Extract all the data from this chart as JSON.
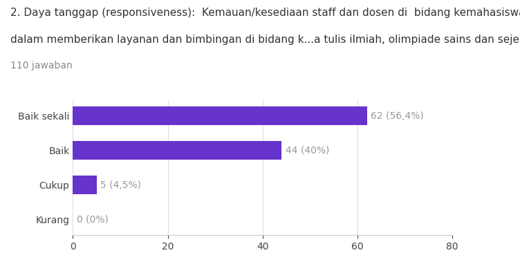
{
  "title_line1": "2. Daya tanggap (responsiveness):  Kemauan/kesediaan staff dan dosen di  bidang kemahasiswaan",
  "title_line2": "dalam memberikan layanan dan bimbingan di bidang k...a tulis ilmiah, olimpiade sains dan sejenisnya)",
  "subtitle": "110 jawaban",
  "categories": [
    "Kurang",
    "Cukup",
    "Baik",
    "Baik sekali"
  ],
  "values": [
    0,
    5,
    44,
    62
  ],
  "labels": [
    "0 (0%)",
    "5 (4,5%)",
    "44 (40%)",
    "62 (56,4%)"
  ],
  "bar_color": "#6633cc",
  "background_color": "#ffffff",
  "xlim": [
    0,
    80
  ],
  "xticks": [
    0,
    20,
    40,
    60,
    80
  ],
  "title_fontsize": 11,
  "subtitle_fontsize": 10,
  "tick_label_fontsize": 10,
  "annotation_fontsize": 10,
  "annotation_color": "#999999"
}
